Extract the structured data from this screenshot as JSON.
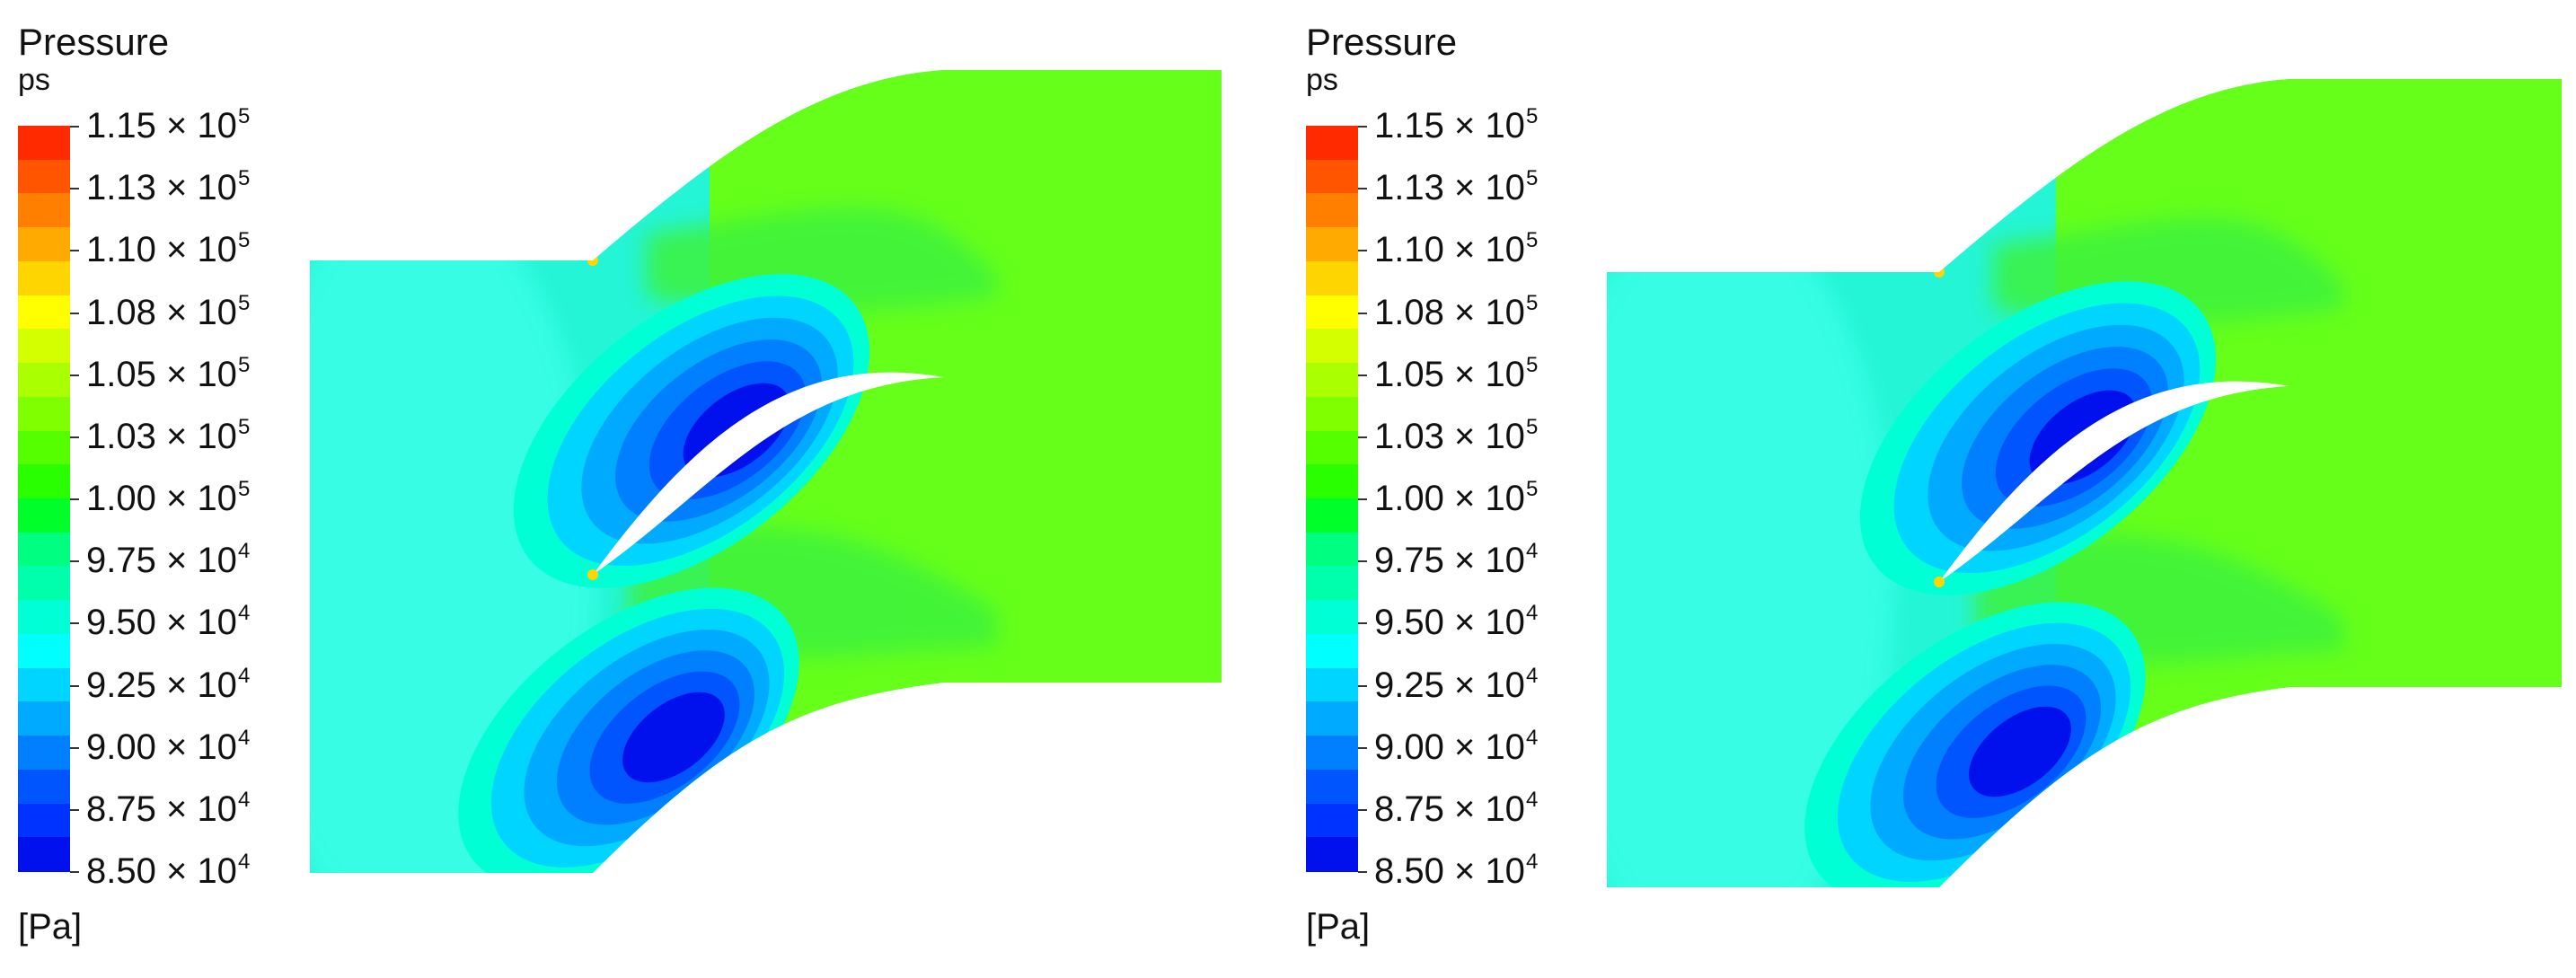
{
  "panels": [
    {
      "id": "left",
      "legend": {
        "title": "Pressure",
        "variable": "ps",
        "unit": "[Pa]",
        "ticks": [
          {
            "mantissa": "1.15 × 10",
            "exp": "5"
          },
          {
            "mantissa": "1.13 × 10",
            "exp": "5"
          },
          {
            "mantissa": "1.10 × 10",
            "exp": "5"
          },
          {
            "mantissa": "1.08 × 10",
            "exp": "5"
          },
          {
            "mantissa": "1.05 × 10",
            "exp": "5"
          },
          {
            "mantissa": "1.03 × 10",
            "exp": "5"
          },
          {
            "mantissa": "1.00 × 10",
            "exp": "5"
          },
          {
            "mantissa": "9.75 × 10",
            "exp": "4"
          },
          {
            "mantissa": "9.50 × 10",
            "exp": "4"
          },
          {
            "mantissa": "9.25 × 10",
            "exp": "4"
          },
          {
            "mantissa": "9.00 × 10",
            "exp": "4"
          },
          {
            "mantissa": "8.75 × 10",
            "exp": "4"
          },
          {
            "mantissa": "8.50 × 10",
            "exp": "4"
          }
        ]
      }
    },
    {
      "id": "right",
      "legend": {
        "title": "Pressure",
        "variable": "ps",
        "unit": "[Pa]",
        "ticks": [
          {
            "mantissa": "1.15 × 10",
            "exp": "5"
          },
          {
            "mantissa": "1.13 × 10",
            "exp": "5"
          },
          {
            "mantissa": "1.10 × 10",
            "exp": "5"
          },
          {
            "mantissa": "1.08 × 10",
            "exp": "5"
          },
          {
            "mantissa": "1.05 × 10",
            "exp": "5"
          },
          {
            "mantissa": "1.03 × 10",
            "exp": "5"
          },
          {
            "mantissa": "1.00 × 10",
            "exp": "5"
          },
          {
            "mantissa": "9.75 × 10",
            "exp": "4"
          },
          {
            "mantissa": "9.50 × 10",
            "exp": "4"
          },
          {
            "mantissa": "9.25 × 10",
            "exp": "4"
          },
          {
            "mantissa": "9.00 × 10",
            "exp": "4"
          },
          {
            "mantissa": "8.75 × 10",
            "exp": "4"
          },
          {
            "mantissa": "8.50 × 10",
            "exp": "4"
          }
        ]
      }
    }
  ],
  "colormap": [
    "#ff2a00",
    "#ff5500",
    "#ff8000",
    "#ffaa00",
    "#ffd500",
    "#ffff00",
    "#d4ff00",
    "#aaff00",
    "#80ff00",
    "#55ff00",
    "#2aff00",
    "#00ff2a",
    "#00ff80",
    "#00ffaa",
    "#00ffd5",
    "#00ffff",
    "#00d5ff",
    "#00aaff",
    "#0080ff",
    "#0055ff",
    "#0033ff",
    "#0011ee"
  ],
  "colors": {
    "inlet": "#24f5d6",
    "inlet_core": "#3affe8",
    "outlet": "#66ff1a",
    "outlet_dark": "#3cf23c",
    "suction_low": "#0b1fe6",
    "blade": "#ffffff"
  }
}
